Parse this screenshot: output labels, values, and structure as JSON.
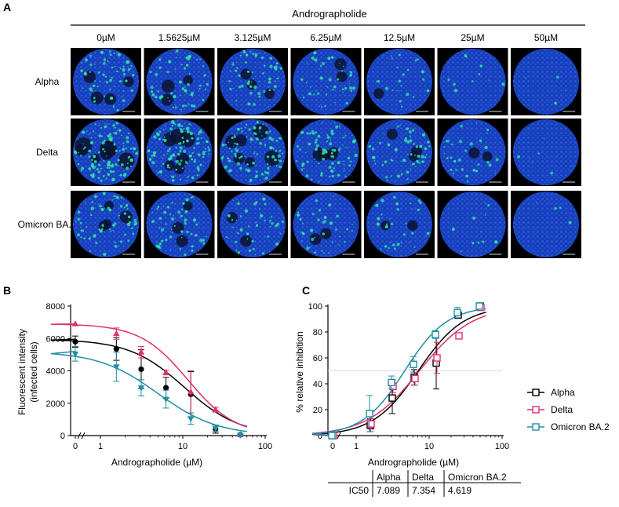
{
  "panel_a": {
    "letter": "A",
    "compound": "Andrographolide",
    "concentrations": [
      "0µM",
      "1.5625µM",
      "3.125µM",
      "6.25µM",
      "12.5µM",
      "25µM",
      "50µM"
    ],
    "variants": [
      "Alpha",
      "Delta",
      "Omicron BA.2"
    ],
    "infection_level": [
      [
        0.45,
        0.4,
        0.38,
        0.3,
        0.15,
        0.05,
        0.01
      ],
      [
        0.85,
        0.8,
        0.7,
        0.55,
        0.4,
        0.2,
        0.03
      ],
      [
        0.45,
        0.38,
        0.3,
        0.25,
        0.22,
        0.06,
        0.01
      ]
    ],
    "colors": {
      "nuclei": "#1f4fd6",
      "infected": "#2fe0a0",
      "background": "#000000"
    }
  },
  "panel_b": {
    "letter": "B",
    "ylabel_line1": "Fluorescent intensity",
    "ylabel_line2": "(infected cells)",
    "xlabel": "Andrographolide (µM)",
    "yticks": [
      "0",
      "2000",
      "4000",
      "6000",
      "8000"
    ],
    "xticks": [
      "0",
      "1",
      "10",
      "100"
    ]
  },
  "panel_c": {
    "letter": "C",
    "ylabel": "% relative inhibition",
    "xlabel": "Andrographolide (µM)",
    "yticks": [
      "0",
      "20",
      "40",
      "60",
      "80",
      "100"
    ],
    "xticks": [
      "0",
      "1",
      "10",
      "100"
    ],
    "legend": [
      "Alpha",
      "Delta",
      "Omicron BA.2"
    ],
    "table": {
      "headers": [
        "",
        "Alpha",
        "Delta",
        "Omicron BA.2"
      ],
      "row_label": "IC50",
      "values": [
        "7.089",
        "7.354",
        "4.619"
      ]
    }
  },
  "chart_data": [
    {
      "type": "scatter",
      "panel": "B",
      "xlabel": "Andrographolide (µM)",
      "ylabel": "Fluorescent intensity (infected cells)",
      "xscale": "log",
      "ylim": [
        0,
        8000
      ],
      "xlim": [
        0,
        100
      ],
      "series": [
        {
          "marker": "circle",
          "color": "#000000",
          "x": [
            0,
            1.5625,
            3.125,
            6.25,
            12.5,
            25,
            50
          ],
          "y": [
            5800,
            5350,
            4100,
            2950,
            2550,
            400,
            50
          ],
          "err": [
            350,
            700,
            1200,
            650,
            1400,
            250,
            50
          ],
          "fit_top": 5950,
          "fit_ic50": 10.5,
          "fit_hill": 1.3
        },
        {
          "marker": "triangle-up",
          "color": "#e0306f",
          "x": [
            0,
            1.5625,
            3.125,
            6.25,
            12.5,
            25,
            50
          ],
          "y": [
            6900,
            6300,
            5150,
            3900,
            2700,
            1600,
            50
          ],
          "err": [
            0,
            350,
            350,
            150,
            1300,
            150,
            50
          ],
          "fit_top": 6900,
          "fit_ic50": 11.5,
          "fit_hill": 1.5
        },
        {
          "marker": "triangle-down",
          "color": "#1f8fa6",
          "x": [
            0,
            1.5625,
            3.125,
            6.25,
            12.5,
            25,
            50
          ],
          "y": [
            5050,
            4250,
            2950,
            2250,
            1050,
            450,
            30
          ],
          "err": [
            450,
            900,
            500,
            550,
            350,
            200,
            30
          ],
          "fit_top": 5200,
          "fit_ic50": 5.0,
          "fit_hill": 1.2
        }
      ]
    },
    {
      "type": "scatter",
      "panel": "C",
      "xlabel": "Andrographolide (µM)",
      "ylabel": "% relative inhibition",
      "xscale": "log",
      "ylim": [
        0,
        100
      ],
      "xlim": [
        0,
        100
      ],
      "series": [
        {
          "name": "Alpha",
          "marker": "square-open",
          "color": "#000000",
          "x": [
            0,
            1.5625,
            3.125,
            6.25,
            12.5,
            25,
            50
          ],
          "y": [
            0,
            8,
            29,
            45,
            56,
            93,
            100
          ],
          "err": [
            0,
            5,
            12,
            6,
            20,
            2,
            0
          ],
          "fit_ic50": 7.089,
          "fit_hill": 1.4
        },
        {
          "name": "Delta",
          "marker": "square-open",
          "color": "#e0306f",
          "x": [
            0,
            1.5625,
            3.125,
            6.25,
            12.5,
            25,
            50
          ],
          "y": [
            0,
            9,
            38,
            44,
            60,
            77,
            99
          ],
          "err": [
            0,
            4,
            5,
            5,
            12,
            2,
            0
          ],
          "fit_ic50": 7.354,
          "fit_hill": 1.2
        },
        {
          "name": "Omicron BA.2",
          "marker": "square-open",
          "color": "#1f8fa6",
          "x": [
            0,
            1.5625,
            3.125,
            6.25,
            12.5,
            25,
            50
          ],
          "y": [
            0,
            17,
            41,
            55,
            78,
            95,
            100
          ],
          "err": [
            0,
            14,
            5,
            6,
            3,
            4,
            0
          ],
          "fit_ic50": 4.619,
          "fit_hill": 1.5
        }
      ]
    }
  ]
}
